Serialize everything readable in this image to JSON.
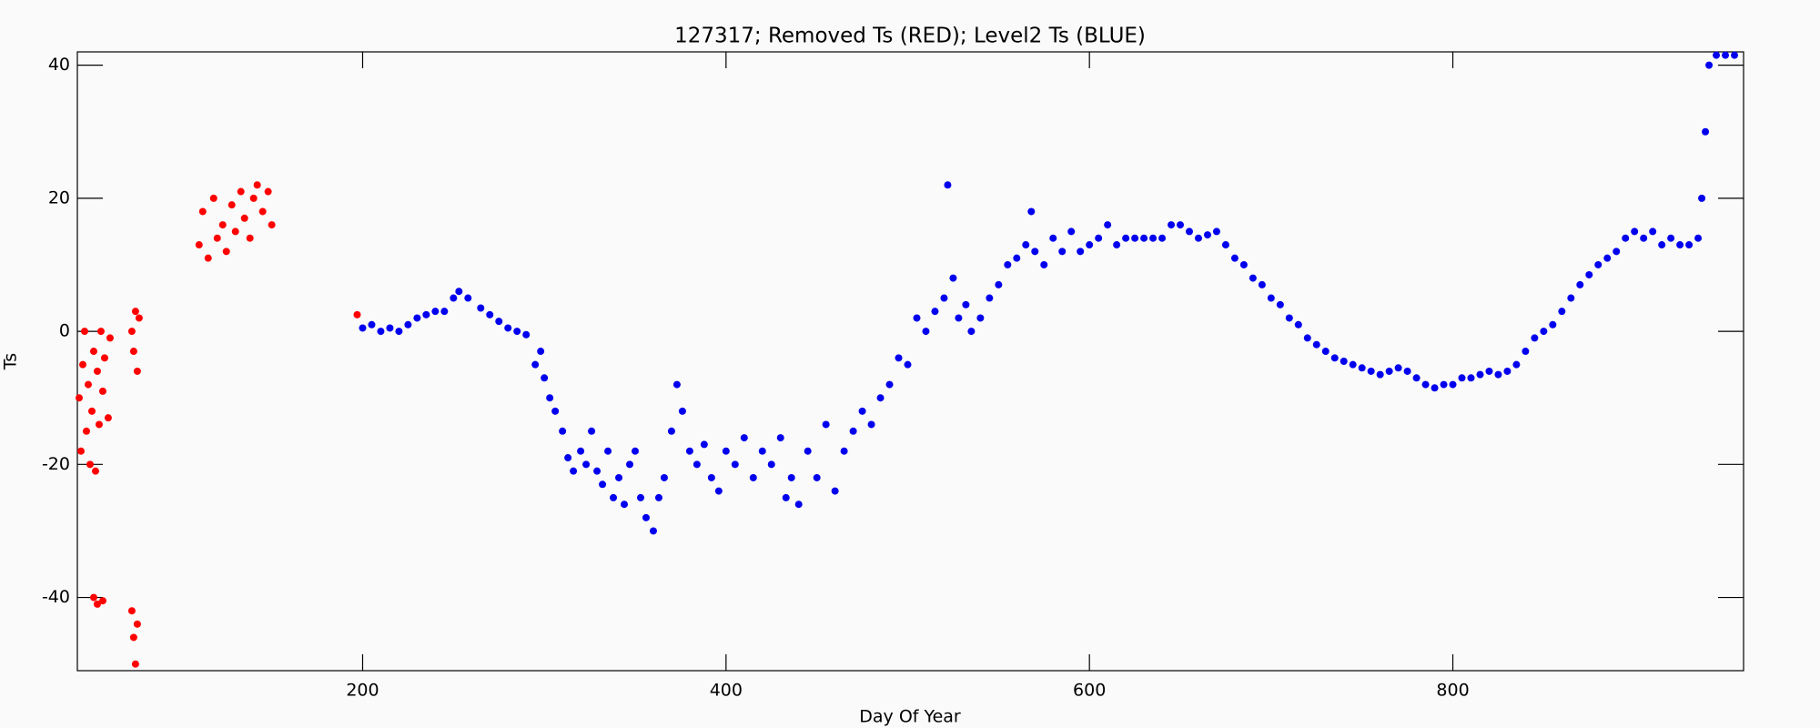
{
  "chart_data": {
    "type": "scatter",
    "title": "127317; Removed Ts (RED); Level2 Ts (BLUE)",
    "x_label": "Day Of Year",
    "y_label": "Ts",
    "xlim": [
      43,
      960
    ],
    "ylim": [
      -51,
      42
    ],
    "xticks": [
      200,
      400,
      600,
      800
    ],
    "yticks": [
      -40,
      -20,
      0,
      20,
      40
    ],
    "series": [
      {
        "color": "#ff0000",
        "x": [
          44,
          45,
          46,
          47,
          48,
          49,
          50,
          51,
          52,
          53,
          54,
          55,
          56,
          57,
          58,
          60,
          61,
          52,
          54,
          57,
          73,
          74,
          75,
          76,
          73,
          74,
          75,
          76,
          77,
          110,
          112,
          115,
          118,
          120,
          123,
          125,
          128,
          130,
          133,
          135,
          138,
          140,
          142,
          145,
          148,
          150,
          197
        ],
        "values": [
          -10,
          -18,
          -5,
          0,
          -15,
          -8,
          -20,
          -12,
          -3,
          -21,
          -6,
          -14,
          0,
          -9,
          -4,
          -13,
          -1,
          -40,
          -41,
          -40.5,
          -42,
          -46,
          -50,
          -44,
          0,
          -3,
          3,
          -6,
          2,
          13,
          18,
          11,
          20,
          14,
          16,
          12,
          19,
          15,
          21,
          17,
          14,
          20,
          22,
          18,
          21,
          16,
          2.5
        ]
      },
      {
        "color": "#0000ee",
        "x": [
          200,
          205,
          210,
          215,
          220,
          225,
          230,
          235,
          240,
          245,
          250,
          253,
          258,
          265,
          270,
          275,
          280,
          285,
          290,
          295,
          298,
          300,
          303,
          306,
          310,
          313,
          316,
          320,
          323,
          326,
          329,
          332,
          335,
          338,
          341,
          344,
          347,
          350,
          353,
          356,
          360,
          363,
          366,
          370,
          373,
          376,
          380,
          384,
          388,
          392,
          396,
          400,
          405,
          410,
          415,
          420,
          425,
          430,
          433,
          436,
          440,
          445,
          450,
          455,
          460,
          465,
          470,
          475,
          480,
          485,
          490,
          495,
          500,
          505,
          510,
          515,
          520,
          522,
          525,
          528,
          532,
          535,
          540,
          545,
          550,
          555,
          560,
          565,
          568,
          570,
          575,
          580,
          585,
          590,
          595,
          600,
          605,
          610,
          615,
          620,
          625,
          630,
          635,
          640,
          645,
          650,
          655,
          660,
          665,
          670,
          675,
          680,
          685,
          690,
          695,
          700,
          705,
          710,
          715,
          720,
          725,
          730,
          735,
          740,
          745,
          750,
          755,
          760,
          765,
          770,
          775,
          780,
          785,
          790,
          795,
          800,
          805,
          810,
          815,
          820,
          825,
          830,
          835,
          840,
          845,
          850,
          855,
          860,
          865,
          870,
          875,
          880,
          885,
          890,
          895,
          900,
          905,
          910,
          915,
          920,
          925,
          930,
          935,
          937,
          939,
          941,
          945,
          950,
          955
        ],
        "values": [
          0.5,
          1,
          0,
          0.5,
          0,
          1,
          2,
          2.5,
          3,
          3,
          5,
          6,
          5,
          3.5,
          2.5,
          1.5,
          0.5,
          0,
          -0.5,
          -5,
          -3,
          -7,
          -10,
          -12,
          -15,
          -19,
          -21,
          -18,
          -20,
          -15,
          -21,
          -23,
          -18,
          -25,
          -22,
          -26,
          -20,
          -18,
          -25,
          -28,
          -30,
          -25,
          -22,
          -15,
          -8,
          -12,
          -18,
          -20,
          -17,
          -22,
          -24,
          -18,
          -20,
          -16,
          -22,
          -18,
          -20,
          -16,
          -25,
          -22,
          -26,
          -18,
          -22,
          -14,
          -24,
          -18,
          -15,
          -12,
          -14,
          -10,
          -8,
          -4,
          -5,
          2,
          0,
          3,
          5,
          22,
          8,
          2,
          4,
          0,
          2,
          5,
          7,
          10,
          11,
          13,
          18,
          12,
          10,
          14,
          12,
          15,
          12,
          13,
          14,
          16,
          13,
          14,
          14,
          14,
          14,
          14,
          16,
          16,
          15,
          14,
          14.5,
          15,
          13,
          11,
          10,
          8,
          7,
          5,
          4,
          2,
          1,
          -1,
          -2,
          -3,
          -4,
          -4.5,
          -5,
          -5.5,
          -6,
          -6.5,
          -6,
          -5.5,
          -6,
          -7,
          -8,
          -8.5,
          -8,
          -8,
          -7,
          -7,
          -6.5,
          -6,
          -6.5,
          -6,
          -5,
          -3,
          -1,
          0,
          1,
          3,
          5,
          7,
          8.5,
          10,
          11,
          12,
          14,
          15,
          14,
          15,
          13,
          14,
          13,
          13,
          14,
          20,
          30,
          40,
          41.5,
          41.5,
          41.5
        ]
      }
    ]
  }
}
